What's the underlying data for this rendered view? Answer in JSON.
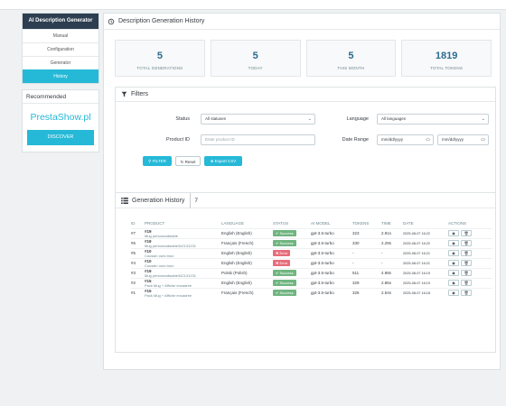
{
  "sidebar": {
    "title": "AI Description Generator",
    "items": [
      {
        "label": "Manual",
        "active": false
      },
      {
        "label": "Configuration",
        "active": false
      },
      {
        "label": "Generator",
        "active": false
      },
      {
        "label": "History",
        "active": true
      }
    ]
  },
  "recommended": {
    "title": "Recommended",
    "brand": "PrestaShow.pl",
    "button": "DISCOVER"
  },
  "page": {
    "title": "Description Generation History"
  },
  "stats": [
    {
      "value": "5",
      "label": "TOTAL GENERATIONS"
    },
    {
      "value": "5",
      "label": "TODAY"
    },
    {
      "value": "5",
      "label": "THIS MONTH"
    },
    {
      "value": "1819",
      "label": "TOTAL TOKENS"
    }
  ],
  "filters": {
    "title": "Filters",
    "status_label": "Status",
    "status_value": "All statuses",
    "language_label": "Language",
    "language_value": "All languages",
    "product_label": "Product ID",
    "product_placeholder": "Enter product ID",
    "date_label": "Date Range",
    "date_from_placeholder": "mm/dd/yyyy",
    "date_to_placeholder": "mm/dd/yyyy",
    "filter_btn": "FILTER",
    "reset_btn": "Reset",
    "export_btn": "Export CSV"
  },
  "history": {
    "title": "Generation History",
    "count": "7",
    "columns": [
      "ID",
      "PRODUCT",
      "LANGUAGE",
      "STATUS",
      "AI MODEL",
      "TOKENS",
      "TIME",
      "DATE",
      "ACTIONS"
    ],
    "rows": [
      {
        "id": "#7",
        "product_id": "#19",
        "product_name": "Mug personnalisable",
        "language": "English (English)",
        "status": "Success",
        "model": "gpt-3.5-turbo",
        "tokens": "323",
        "time": "2.91s",
        "date": "2025-08-07 16:22"
      },
      {
        "id": "#6",
        "product_id": "#19",
        "product_name": "Mug personnalisable342131231",
        "language": "Français (French)",
        "status": "Success",
        "model": "gpt-3.5-turbo",
        "tokens": "330",
        "time": "2.29s",
        "date": "2025-08-07 16:22"
      },
      {
        "id": "#5",
        "product_id": "#10",
        "product_name": "Coussin ours brun",
        "language": "English (English)",
        "status": "Error",
        "model": "gpt-3.5-turbo",
        "tokens": "-",
        "time": "-",
        "date": "2025-08-07 16:21"
      },
      {
        "id": "#4",
        "product_id": "#10",
        "product_name": "Coussin ours brun",
        "language": "English (English)",
        "status": "Error",
        "model": "gpt-3.5-turbo",
        "tokens": "-",
        "time": "-",
        "date": "2025-08-07 16:21"
      },
      {
        "id": "#3",
        "product_id": "#19",
        "product_name": "Mug personnalisable342131231",
        "language": "Polski (Polish)",
        "status": "Success",
        "model": "gpt-3.5-turbo",
        "tokens": "511",
        "time": "4.98s",
        "date": "2025-08-07 16:19"
      },
      {
        "id": "#2",
        "product_id": "#15",
        "product_name": "Pack Mug + Affiche encadrée",
        "language": "English (English)",
        "status": "Success",
        "model": "gpt-3.5-turbo",
        "tokens": "329",
        "time": "2.86s",
        "date": "2025-08-07 16:19"
      },
      {
        "id": "#1",
        "product_id": "#15",
        "product_name": "Pack Mug + Affiche encadrée",
        "language": "Français (French)",
        "status": "Success",
        "model": "gpt-3.5-turbo",
        "tokens": "326",
        "time": "2.54s",
        "date": "2025-08-07 16:18"
      }
    ]
  },
  "colors": {
    "accent": "#25b9d7",
    "success": "#70b580",
    "error": "#e76d7a",
    "stat_value": "#2b6b8f"
  },
  "icons": {
    "history": "history-icon",
    "filter": "funnel-icon",
    "list": "list-icon",
    "view": "eye-icon",
    "delete": "trash-icon"
  }
}
